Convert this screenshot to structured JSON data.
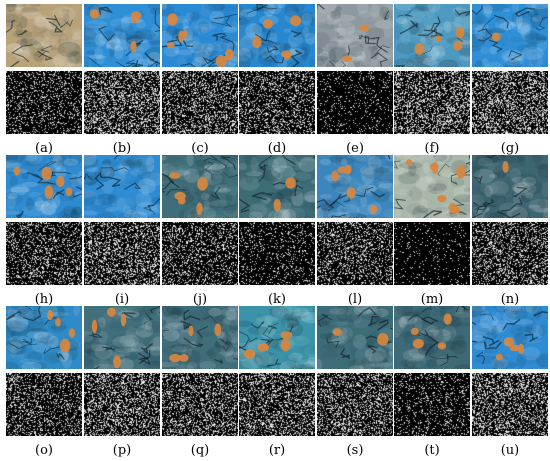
{
  "figure": {
    "panels": [
      {
        "label": "(a)",
        "top_tint": "#b7a27a",
        "mask_density": 0.18,
        "spots": 0
      },
      {
        "label": "(b)",
        "top_tint": "#2f8fd6",
        "mask_density": 0.32,
        "spots": 4
      },
      {
        "label": "(c)",
        "top_tint": "#2a8ad4",
        "mask_density": 0.3,
        "spots": 6
      },
      {
        "label": "(d)",
        "top_tint": "#2787cf",
        "mask_density": 0.26,
        "spots": 5
      },
      {
        "label": "(e)",
        "top_tint": "#8f9aa0",
        "mask_density": 0.1,
        "spots": 2
      },
      {
        "label": "(f)",
        "top_tint": "#4d99bf",
        "mask_density": 0.33,
        "spots": 4
      },
      {
        "label": "(g)",
        "top_tint": "#2e8fd6",
        "mask_density": 0.34,
        "spots": 1
      },
      {
        "label": "(h)",
        "top_tint": "#2f8bd1",
        "mask_density": 0.24,
        "spots": 5
      },
      {
        "label": "(i)",
        "top_tint": "#2e8cd3",
        "mask_density": 0.29,
        "spots": 0
      },
      {
        "label": "(j)",
        "top_tint": "#3f6e7a",
        "mask_density": 0.22,
        "spots": 5
      },
      {
        "label": "(k)",
        "top_tint": "#3d6c78",
        "mask_density": 0.13,
        "spots": 2
      },
      {
        "label": "(l)",
        "top_tint": "#3a86bd",
        "mask_density": 0.25,
        "spots": 5
      },
      {
        "label": "(m)",
        "top_tint": "#a9b7a9",
        "mask_density": 0.06,
        "spots": 7
      },
      {
        "label": "(n)",
        "top_tint": "#3e6672",
        "mask_density": 0.27,
        "spots": 1
      },
      {
        "label": "(o)",
        "top_tint": "#2f8ac6",
        "mask_density": 0.24,
        "spots": 4
      },
      {
        "label": "(p)",
        "top_tint": "#416f7c",
        "mask_density": 0.31,
        "spots": 4
      },
      {
        "label": "(q)",
        "top_tint": "#3f6d7a",
        "mask_density": 0.3,
        "spots": 4
      },
      {
        "label": "(r)",
        "top_tint": "#3a93a9",
        "mask_density": 0.3,
        "spots": 4
      },
      {
        "label": "(s)",
        "top_tint": "#3d6c79",
        "mask_density": 0.3,
        "spots": 2
      },
      {
        "label": "(t)",
        "top_tint": "#3e6a77",
        "mask_density": 0.16,
        "spots": 4
      },
      {
        "label": "(u)",
        "top_tint": "#2f8bd2",
        "mask_density": 0.32,
        "spots": 4
      }
    ]
  }
}
